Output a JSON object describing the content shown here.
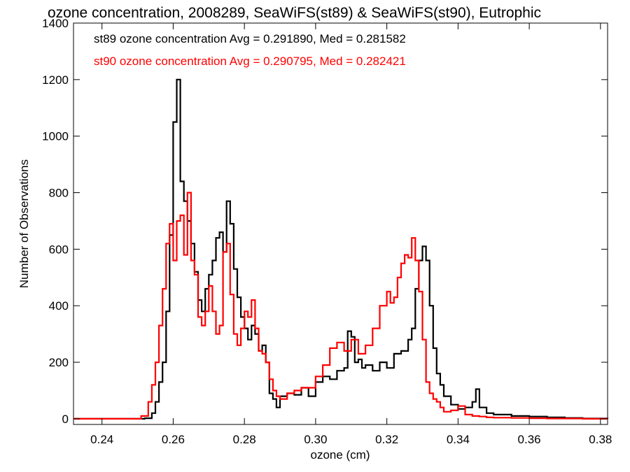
{
  "chart_data": {
    "type": "line",
    "title": "ozone concentration, 2008289, SeaWiFS(st89) & SeaWiFS(st90), Eutrophic",
    "xlabel": "ozone (cm)",
    "ylabel": "Number of Observations",
    "xlim": [
      0.232,
      0.382
    ],
    "ylim": [
      -20,
      1400
    ],
    "x_ticks": [
      0.24,
      0.26,
      0.28,
      0.3,
      0.32,
      0.34,
      0.36,
      0.38
    ],
    "x_tick_labels": [
      "0.24",
      "0.26",
      "0.28",
      "0.30",
      "0.32",
      "0.34",
      "0.36",
      "0.38"
    ],
    "y_ticks": [
      0,
      200,
      400,
      600,
      800,
      1000,
      1200,
      1400
    ],
    "y_tick_labels": [
      "0",
      "200",
      "400",
      "600",
      "800",
      "1000",
      "1200",
      "1400"
    ],
    "grid": false,
    "legend": "top-left",
    "series": [
      {
        "name": "st89",
        "color": "#000000",
        "annotation": "st89 ozone concentration Avg = 0.291890, Med = 0.281582",
        "x": [
          0.232,
          0.25,
          0.252,
          0.254,
          0.255,
          0.256,
          0.257,
          0.258,
          0.259,
          0.26,
          0.261,
          0.262,
          0.263,
          0.264,
          0.265,
          0.266,
          0.267,
          0.268,
          0.269,
          0.27,
          0.271,
          0.272,
          0.273,
          0.274,
          0.275,
          0.276,
          0.277,
          0.278,
          0.279,
          0.28,
          0.281,
          0.282,
          0.283,
          0.284,
          0.285,
          0.286,
          0.287,
          0.288,
          0.289,
          0.29,
          0.292,
          0.294,
          0.296,
          0.298,
          0.3,
          0.302,
          0.304,
          0.306,
          0.308,
          0.309,
          0.31,
          0.311,
          0.312,
          0.313,
          0.314,
          0.316,
          0.318,
          0.32,
          0.322,
          0.324,
          0.326,
          0.327,
          0.328,
          0.329,
          0.33,
          0.331,
          0.332,
          0.333,
          0.334,
          0.335,
          0.336,
          0.338,
          0.34,
          0.342,
          0.344,
          0.345,
          0.346,
          0.348,
          0.35,
          0.355,
          0.36,
          0.365,
          0.37,
          0.375,
          0.382
        ],
        "y": [
          0,
          0,
          2,
          20,
          60,
          130,
          200,
          380,
          650,
          1050,
          1200,
          840,
          770,
          700,
          620,
          520,
          420,
          380,
          460,
          510,
          560,
          640,
          660,
          590,
          770,
          690,
          530,
          430,
          360,
          320,
          280,
          330,
          300,
          240,
          260,
          200,
          90,
          70,
          40,
          80,
          90,
          85,
          110,
          80,
          130,
          150,
          140,
          170,
          180,
          310,
          290,
          200,
          210,
          180,
          190,
          170,
          200,
          180,
          230,
          240,
          280,
          320,
          460,
          560,
          610,
          560,
          400,
          250,
          160,
          120,
          80,
          50,
          35,
          40,
          60,
          105,
          40,
          20,
          15,
          10,
          8,
          5,
          3,
          1,
          0
        ]
      },
      {
        "name": "st90",
        "color": "#ff0000",
        "annotation": "st90 ozone concentration Avg = 0.290795, Med = 0.282421",
        "x": [
          0.232,
          0.249,
          0.251,
          0.253,
          0.254,
          0.255,
          0.256,
          0.257,
          0.258,
          0.259,
          0.26,
          0.261,
          0.262,
          0.263,
          0.264,
          0.265,
          0.266,
          0.267,
          0.268,
          0.269,
          0.27,
          0.271,
          0.272,
          0.273,
          0.274,
          0.275,
          0.276,
          0.277,
          0.278,
          0.279,
          0.28,
          0.281,
          0.282,
          0.283,
          0.284,
          0.285,
          0.286,
          0.287,
          0.288,
          0.289,
          0.29,
          0.292,
          0.294,
          0.296,
          0.298,
          0.3,
          0.302,
          0.304,
          0.306,
          0.308,
          0.31,
          0.312,
          0.314,
          0.316,
          0.318,
          0.32,
          0.321,
          0.322,
          0.323,
          0.324,
          0.325,
          0.326,
          0.327,
          0.328,
          0.329,
          0.33,
          0.331,
          0.332,
          0.333,
          0.334,
          0.335,
          0.336,
          0.338,
          0.34,
          0.342,
          0.344,
          0.346,
          0.348,
          0.35,
          0.355,
          0.36,
          0.365,
          0.37,
          0.375,
          0.382
        ],
        "y": [
          0,
          0,
          10,
          60,
          120,
          200,
          330,
          460,
          620,
          690,
          560,
          700,
          720,
          580,
          800,
          560,
          510,
          360,
          330,
          380,
          470,
          380,
          300,
          330,
          590,
          620,
          440,
          300,
          260,
          320,
          380,
          360,
          420,
          320,
          240,
          230,
          200,
          140,
          100,
          80,
          70,
          90,
          100,
          110,
          110,
          150,
          190,
          250,
          270,
          240,
          280,
          230,
          260,
          320,
          400,
          450,
          410,
          430,
          500,
          550,
          580,
          570,
          640,
          560,
          450,
          280,
          130,
          90,
          70,
          60,
          40,
          25,
          30,
          45,
          15,
          10,
          8,
          5,
          4,
          3,
          2,
          1,
          1,
          0,
          0
        ]
      }
    ]
  }
}
